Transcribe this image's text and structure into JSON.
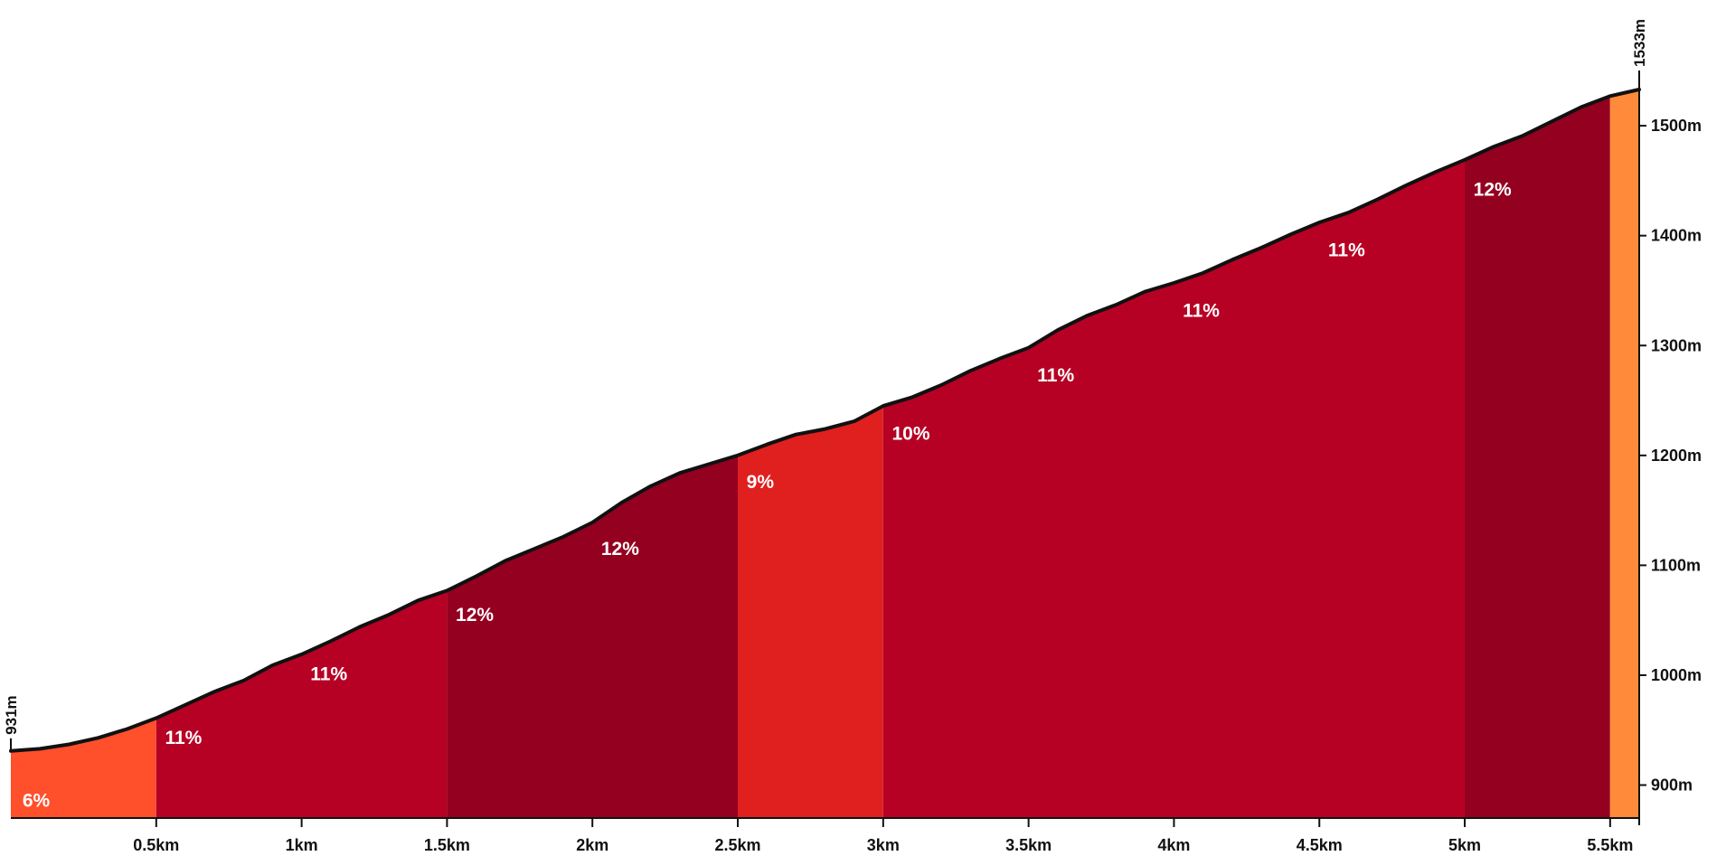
{
  "chart_data": {
    "type": "area",
    "title": "",
    "xlabel": "",
    "ylabel": "",
    "xlim": [
      0,
      5.6
    ],
    "ylim": [
      870,
      1533
    ],
    "start_label": "931m",
    "end_label": "1533m",
    "x_ticks": [
      {
        "x": 0.5,
        "label": "0.5km"
      },
      {
        "x": 1.0,
        "label": "1km"
      },
      {
        "x": 1.5,
        "label": "1.5km"
      },
      {
        "x": 2.0,
        "label": "2km"
      },
      {
        "x": 2.5,
        "label": "2.5km"
      },
      {
        "x": 3.0,
        "label": "3km"
      },
      {
        "x": 3.5,
        "label": "3.5km"
      },
      {
        "x": 4.0,
        "label": "4km"
      },
      {
        "x": 4.5,
        "label": "4.5km"
      },
      {
        "x": 5.0,
        "label": "5km"
      },
      {
        "x": 5.5,
        "label": "5.5km"
      }
    ],
    "y_ticks": [
      {
        "y": 900,
        "label": "900m"
      },
      {
        "y": 1000,
        "label": "1000m"
      },
      {
        "y": 1100,
        "label": "1100m"
      },
      {
        "y": 1200,
        "label": "1200m"
      },
      {
        "y": 1300,
        "label": "1300m"
      },
      {
        "y": 1400,
        "label": "1400m"
      },
      {
        "y": 1500,
        "label": "1500m"
      }
    ],
    "segments": [
      {
        "start": 0.0,
        "end": 0.5,
        "gradient": "6%",
        "color": "#ff4f2b"
      },
      {
        "start": 0.5,
        "end": 1.5,
        "gradient": "11%",
        "color": "#b70124"
      },
      {
        "start": 1.5,
        "end": 2.5,
        "gradient": "12%",
        "color": "#940020"
      },
      {
        "start": 2.5,
        "end": 3.0,
        "gradient": "9%",
        "color": "#e01f1f"
      },
      {
        "start": 3.0,
        "end": 5.0,
        "gradient": "",
        "color": "#b70124"
      },
      {
        "start": 5.0,
        "end": 5.5,
        "gradient": "12%",
        "color": "#940020"
      },
      {
        "start": 5.5,
        "end": 5.6,
        "gradient": "",
        "color": "#ff8a3a"
      }
    ],
    "gradient_labels": [
      {
        "x": 0.04,
        "elevation": 905,
        "label": "6%"
      },
      {
        "x": 0.53,
        "elevation": 962,
        "label": "11%"
      },
      {
        "x": 1.03,
        "elevation": 1020,
        "label": "11%"
      },
      {
        "x": 1.53,
        "elevation": 1074,
        "label": "12%"
      },
      {
        "x": 2.03,
        "elevation": 1134,
        "label": "12%"
      },
      {
        "x": 2.53,
        "elevation": 1195,
        "label": "9%"
      },
      {
        "x": 3.03,
        "elevation": 1239,
        "label": "10%"
      },
      {
        "x": 3.53,
        "elevation": 1292,
        "label": "11%"
      },
      {
        "x": 4.03,
        "elevation": 1351,
        "label": "11%"
      },
      {
        "x": 4.53,
        "elevation": 1406,
        "label": "11%"
      },
      {
        "x": 5.03,
        "elevation": 1461,
        "label": "12%"
      }
    ],
    "profile": {
      "x": [
        0,
        0.1,
        0.2,
        0.3,
        0.4,
        0.5,
        0.6,
        0.7,
        0.8,
        0.9,
        1.0,
        1.1,
        1.2,
        1.3,
        1.4,
        1.5,
        1.6,
        1.7,
        1.8,
        1.9,
        2.0,
        2.1,
        2.2,
        2.3,
        2.4,
        2.5,
        2.6,
        2.7,
        2.8,
        2.9,
        3.0,
        3.1,
        3.2,
        3.3,
        3.4,
        3.5,
        3.6,
        3.7,
        3.8,
        3.9,
        4.0,
        4.1,
        4.2,
        4.3,
        4.4,
        4.5,
        4.6,
        4.7,
        4.8,
        4.9,
        5.0,
        5.1,
        5.2,
        5.3,
        5.4,
        5.5,
        5.6
      ],
      "elevation": [
        931,
        933,
        937,
        943,
        951,
        961,
        973,
        985,
        995,
        1009,
        1019,
        1031,
        1044,
        1055,
        1068,
        1077,
        1090,
        1104,
        1115,
        1126,
        1139,
        1157,
        1172,
        1184,
        1192,
        1200,
        1210,
        1219,
        1224,
        1231,
        1245,
        1253,
        1264,
        1277,
        1288,
        1298,
        1314,
        1327,
        1337,
        1349,
        1357,
        1366,
        1378,
        1389,
        1401,
        1412,
        1421,
        1433,
        1446,
        1458,
        1469,
        1481,
        1491,
        1504,
        1517,
        1527,
        1533
      ]
    }
  }
}
